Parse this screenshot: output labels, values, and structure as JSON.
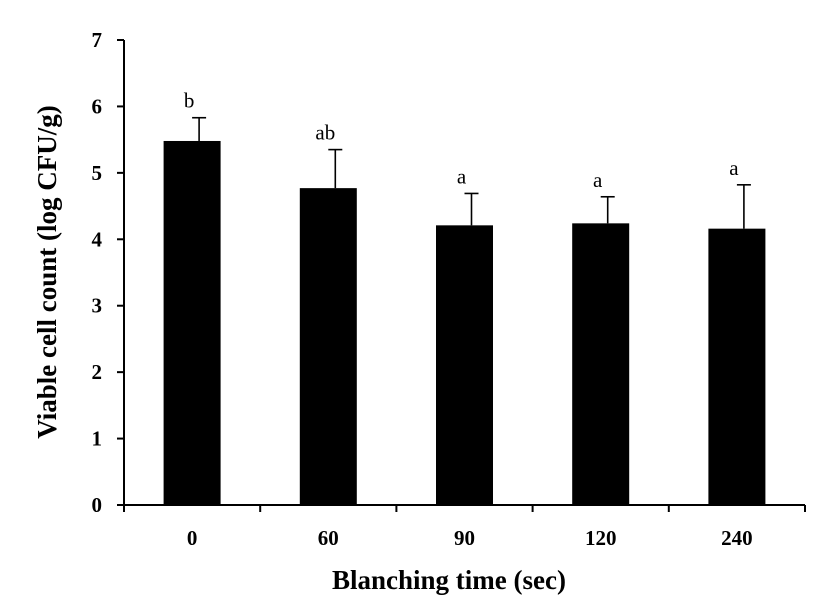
{
  "chart_data": {
    "type": "bar",
    "xlabel": "Blanching  time (sec)",
    "ylabel": "Viable  cell count (log CFU/g)",
    "categories": [
      "0",
      "60",
      "90",
      "120",
      "240"
    ],
    "values": [
      5.48,
      4.77,
      4.21,
      4.24,
      4.16
    ],
    "errors": [
      0.35,
      0.58,
      0.48,
      0.4,
      0.66
    ],
    "significance_labels": [
      "b",
      "ab",
      "a",
      "a",
      "a"
    ],
    "ylim": [
      0,
      7
    ],
    "yticks": [
      "0",
      "1",
      "2",
      "3",
      "4",
      "5",
      "6",
      "7"
    ],
    "bar_color": "#000000",
    "grid": false,
    "legend": "none"
  }
}
